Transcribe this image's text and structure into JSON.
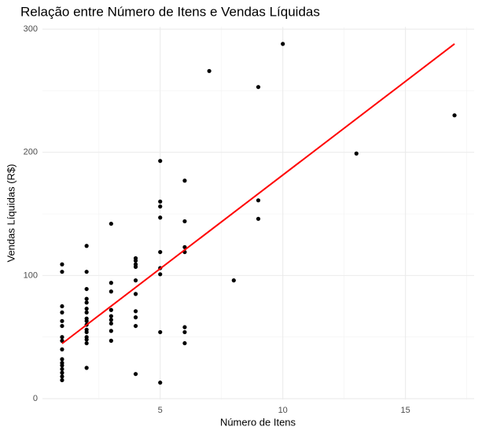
{
  "chart_data": {
    "type": "scatter",
    "title": "Relação entre Número de Itens e Vendas Líquidas",
    "x_label": "Número de Itens",
    "y_label": "Vendas Líquidas (R$)",
    "xlim": [
      0.2,
      17.8
    ],
    "ylim": [
      -0.75,
      301.75
    ],
    "xticks": [
      5,
      10,
      15
    ],
    "yticks": [
      0,
      100,
      200,
      300
    ],
    "x_minor_grid": [
      2.5,
      7.5,
      12.5,
      17.5
    ],
    "y_minor_grid": [
      50,
      150,
      250
    ],
    "grid": true,
    "points": {
      "color": "#000000",
      "x": [
        1,
        1,
        1,
        1,
        1,
        1,
        1,
        1,
        1,
        1,
        1,
        1,
        1,
        1,
        1,
        1,
        2,
        2,
        2,
        2,
        2,
        2,
        2,
        2,
        2,
        2,
        2,
        2,
        2,
        2,
        2,
        2,
        3,
        3,
        3,
        3,
        3,
        3,
        3,
        3,
        3,
        4,
        4,
        4,
        4,
        4,
        4,
        4,
        4,
        4,
        4,
        5,
        5,
        5,
        5,
        5,
        5,
        5,
        5,
        5,
        6,
        6,
        6,
        6,
        6,
        6,
        6,
        7,
        8,
        9,
        9,
        9,
        10,
        13,
        17
      ],
      "y": [
        109,
        103,
        75,
        70,
        63,
        59,
        50,
        47,
        40,
        32,
        29,
        27,
        24,
        21,
        18,
        15,
        124,
        103,
        89,
        81,
        78,
        73,
        70,
        65,
        63,
        60,
        56,
        54,
        50,
        48,
        45,
        25,
        142,
        94,
        87,
        72,
        67,
        64,
        61,
        55,
        47,
        114,
        112,
        109,
        107,
        96,
        85,
        71,
        66,
        59,
        20,
        193,
        160,
        156,
        147,
        119,
        106,
        101,
        54,
        13,
        177,
        144,
        123,
        119,
        58,
        54,
        45,
        266,
        96,
        253,
        161,
        146,
        288,
        199,
        230
      ]
    },
    "trend_line": {
      "color": "#ff0000",
      "x": [
        1,
        17
      ],
      "y": [
        44.7,
        288
      ]
    }
  }
}
